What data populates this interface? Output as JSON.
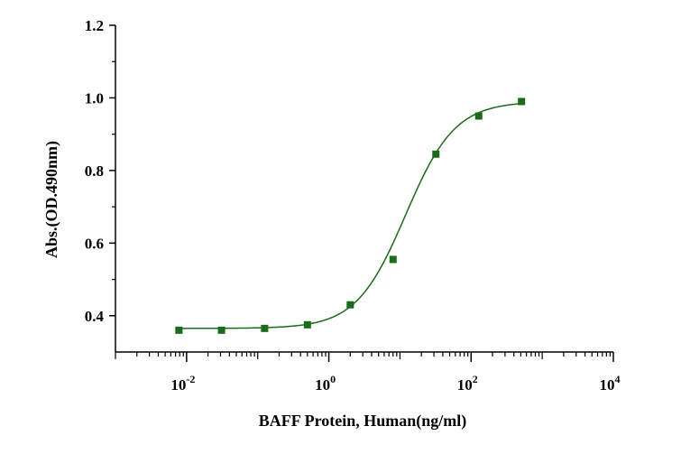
{
  "chart_data": {
    "type": "scatter",
    "title": "",
    "xlabel": "BAFF Protein, Human(ng/ml)",
    "ylabel": "Abs.(OD.490nm)",
    "x_scale": "log10",
    "xlim": [
      0.001,
      10000
    ],
    "ylim": [
      0.3,
      1.2
    ],
    "x_ticks": [
      {
        "value": 0.01,
        "base": "10",
        "exp": "-2"
      },
      {
        "value": 1,
        "base": "10",
        "exp": "0"
      },
      {
        "value": 100,
        "base": "10",
        "exp": "2"
      },
      {
        "value": 10000,
        "base": "10",
        "exp": "4"
      }
    ],
    "y_ticks": [
      {
        "value": 0.4,
        "label": "0.4"
      },
      {
        "value": 0.6,
        "label": "0.6"
      },
      {
        "value": 0.8,
        "label": "0.8"
      },
      {
        "value": 1.0,
        "label": "1.0"
      },
      {
        "value": 1.2,
        "label": "1.2"
      }
    ],
    "series": [
      {
        "x": [
          0.0078,
          0.031,
          0.125,
          0.5,
          2,
          8,
          32,
          128,
          512
        ],
        "y": [
          0.36,
          0.36,
          0.365,
          0.375,
          0.43,
          0.555,
          0.845,
          0.95,
          0.99
        ],
        "color": "#1a6b1a",
        "marker": "square",
        "fit": "four-parameter logistic",
        "fit_params": {
          "bottom": 0.365,
          "top": 0.99,
          "ec50": 12,
          "hill": 1.25
        }
      }
    ],
    "grid": false,
    "legend": "none"
  }
}
